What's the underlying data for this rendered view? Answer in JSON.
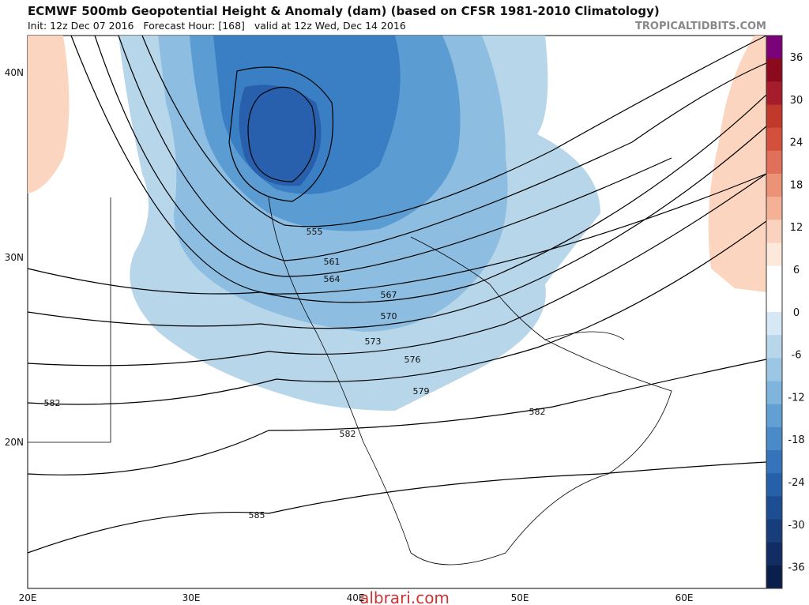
{
  "header": {
    "title": "ECMWF 500mb Geopotential Height & Anomaly (dam) (based on CFSR 1981-2010 Climatology)",
    "subtitle": "Init: 12z Dec 07 2016   Forecast Hour: [168]   valid at 12z Wed, Dec 14 2016",
    "source": "TROPICALTIDBITS.COM"
  },
  "map": {
    "lat_labels": [
      "40N",
      "30N",
      "20N"
    ],
    "lon_labels": [
      "20E",
      "30E",
      "40E",
      "50E",
      "60E"
    ],
    "contour_labels": [
      "555",
      "561",
      "564",
      "567",
      "570",
      "573",
      "576",
      "579",
      "582",
      "582",
      "582",
      "585"
    ]
  },
  "colorbar": {
    "labels": [
      36,
      30,
      24,
      18,
      12,
      6,
      0,
      -6,
      -12,
      -18,
      -24,
      -30,
      -36
    ]
  },
  "watermark": "albrari.com"
}
